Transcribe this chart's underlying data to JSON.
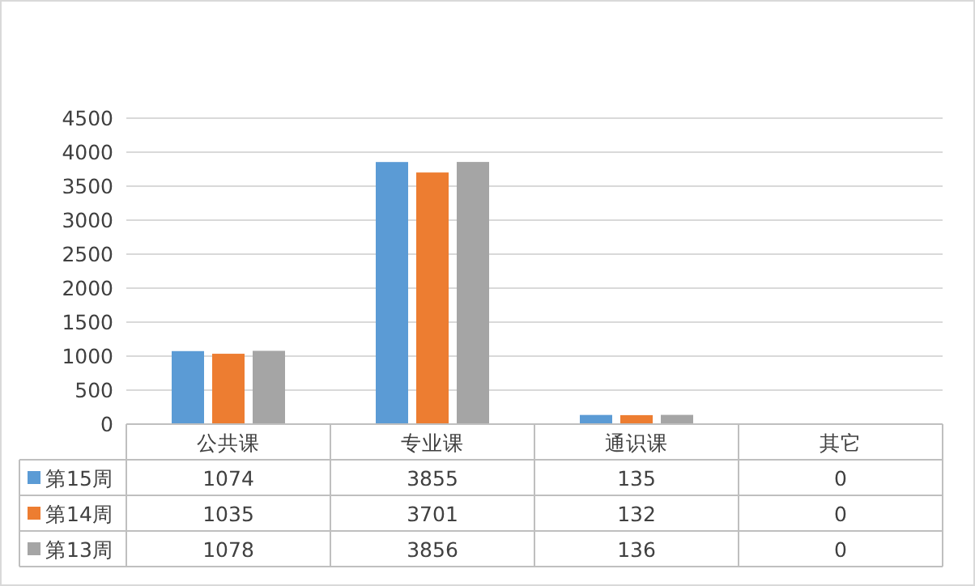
{
  "chart_data": {
    "type": "bar",
    "categories": [
      "公共课",
      "专业课",
      "通识课",
      "其它"
    ],
    "series": [
      {
        "name": "第15周",
        "color": "#5b9bd5",
        "values": [
          1074,
          3855,
          135,
          0
        ]
      },
      {
        "name": "第14周",
        "color": "#ed7d31",
        "values": [
          1035,
          3701,
          132,
          0
        ]
      },
      {
        "name": "第13周",
        "color": "#a5a5a5",
        "values": [
          1078,
          3856,
          136,
          0
        ]
      }
    ],
    "ylim": [
      0,
      4500
    ],
    "yticks": [
      0,
      500,
      1000,
      1500,
      2000,
      2500,
      3000,
      3500,
      4000,
      4500
    ],
    "grid": "y",
    "data_labels": true,
    "legend": "bottom"
  }
}
